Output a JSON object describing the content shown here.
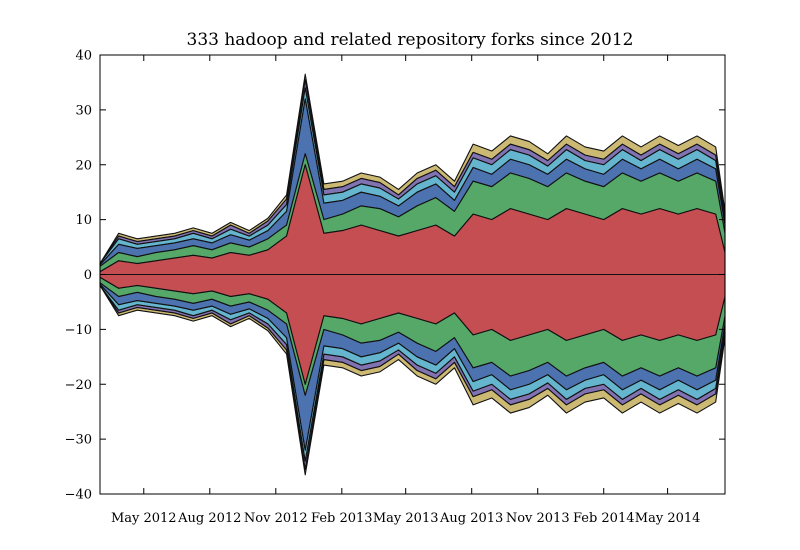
{
  "chart_data": {
    "type": "area",
    "subtype": "symmetric-streamgraph",
    "title": "333 hadoop and related repository forks since 2012",
    "xlabel": "",
    "ylabel": "",
    "ylim": [
      -40,
      40
    ],
    "xlim": [
      "2012-03-01",
      "2014-07-20"
    ],
    "grid": false,
    "legend": "none",
    "y_ticks": [
      {
        "value": 40,
        "label": "40"
      },
      {
        "value": 30,
        "label": "30"
      },
      {
        "value": 20,
        "label": "20"
      },
      {
        "value": 10,
        "label": "10"
      },
      {
        "value": 0,
        "label": "0"
      },
      {
        "value": -10,
        "label": "−10"
      },
      {
        "value": -20,
        "label": "−20"
      },
      {
        "value": -30,
        "label": "−30"
      },
      {
        "value": -40,
        "label": "−40"
      }
    ],
    "x_ticks": [
      {
        "value": "2012-05-01",
        "label": "May 2012"
      },
      {
        "value": "2012-08-01",
        "label": "Aug 2012"
      },
      {
        "value": "2012-11-01",
        "label": "Nov 2012"
      },
      {
        "value": "2013-02-01",
        "label": "Feb 2013"
      },
      {
        "value": "2013-05-01",
        "label": "May 2013"
      },
      {
        "value": "2013-08-01",
        "label": "Aug 2013"
      },
      {
        "value": "2013-11-01",
        "label": "Nov 2013"
      },
      {
        "value": "2014-02-01",
        "label": "Feb 2014"
      },
      {
        "value": "2014-05-01",
        "label": "May 2014"
      }
    ],
    "palette": [
      "#c44e52",
      "#55a868",
      "#4c72b0",
      "#64b5cd",
      "#8172b2",
      "#ccb974"
    ],
    "x": [
      "2012-03-01",
      "2012-03-27",
      "2012-04-22",
      "2012-05-18",
      "2012-06-13",
      "2012-07-09",
      "2012-08-04",
      "2012-08-30",
      "2012-09-25",
      "2012-10-21",
      "2012-11-16",
      "2012-12-12",
      "2013-01-07",
      "2013-02-02",
      "2013-02-28",
      "2013-03-26",
      "2013-04-21",
      "2013-05-17",
      "2013-06-12",
      "2013-07-08",
      "2013-08-03",
      "2013-08-29",
      "2013-09-24",
      "2013-10-20",
      "2013-11-15",
      "2013-12-11",
      "2014-01-06",
      "2014-02-01",
      "2014-02-27",
      "2014-03-25",
      "2014-04-20",
      "2014-05-16",
      "2014-06-11",
      "2014-07-07",
      "2014-07-20"
    ],
    "series": [
      {
        "values": [
          1.0,
          5.0,
          4.0,
          5.0,
          6.0,
          7.0,
          6.0,
          8.0,
          7.0,
          9.0,
          14.0,
          40.0,
          15.0,
          16.0,
          18.0,
          16.0,
          14.0,
          16.0,
          18.0,
          14.0,
          22.0,
          20.0,
          24.0,
          22.0,
          20.0,
          24.0,
          22.0,
          20.0,
          24.0,
          22.0,
          24.0,
          22.0,
          24.0,
          22.0,
          8.0
        ]
      },
      {
        "values": [
          2.0,
          3.0,
          2.5,
          3.0,
          3.0,
          3.5,
          3.0,
          3.5,
          3.0,
          4.0,
          4.0,
          4.0,
          5.0,
          6.0,
          7.0,
          8.0,
          7.0,
          9.0,
          10.0,
          9.0,
          12.0,
          12.0,
          13.0,
          13.0,
          12.0,
          13.0,
          12.0,
          12.0,
          13.0,
          12.0,
          13.0,
          12.0,
          13.0,
          12.0,
          7.0
        ]
      },
      {
        "values": [
          0.5,
          3.0,
          3.0,
          2.5,
          2.5,
          2.5,
          2.5,
          3.0,
          2.5,
          3.0,
          5.0,
          20.0,
          6.0,
          5.0,
          5.0,
          4.5,
          4.0,
          5.0,
          5.0,
          4.0,
          5.0,
          4.5,
          5.0,
          5.0,
          4.5,
          5.0,
          4.5,
          4.5,
          5.0,
          4.5,
          5.0,
          4.5,
          5.0,
          4.5,
          3.0
        ]
      },
      {
        "values": [
          0.5,
          2.0,
          1.5,
          1.5,
          1.5,
          2.0,
          1.5,
          2.0,
          1.5,
          2.0,
          2.5,
          4.0,
          3.0,
          3.0,
          3.0,
          3.0,
          2.5,
          3.0,
          3.0,
          3.0,
          3.5,
          3.5,
          3.5,
          3.5,
          3.0,
          3.5,
          3.0,
          3.5,
          3.5,
          3.0,
          3.5,
          3.5,
          3.5,
          3.0,
          2.0
        ]
      },
      {
        "values": [
          0.0,
          1.0,
          1.0,
          1.0,
          1.0,
          1.0,
          1.0,
          1.5,
          1.0,
          1.5,
          2.0,
          3.0,
          2.0,
          2.0,
          2.0,
          2.0,
          1.5,
          2.0,
          2.0,
          2.0,
          2.0,
          2.0,
          2.0,
          2.0,
          2.0,
          2.0,
          2.0,
          2.0,
          2.0,
          2.0,
          2.0,
          2.0,
          2.0,
          2.0,
          1.0
        ]
      },
      {
        "values": [
          0.0,
          1.0,
          1.0,
          1.0,
          1.0,
          1.0,
          1.0,
          1.0,
          1.0,
          1.0,
          1.5,
          2.0,
          2.0,
          2.0,
          2.0,
          2.0,
          2.0,
          2.0,
          2.0,
          2.0,
          3.0,
          3.0,
          3.0,
          3.0,
          2.5,
          3.0,
          3.0,
          3.0,
          3.0,
          3.0,
          3.0,
          3.0,
          3.0,
          3.0,
          2.0
        ]
      }
    ]
  }
}
